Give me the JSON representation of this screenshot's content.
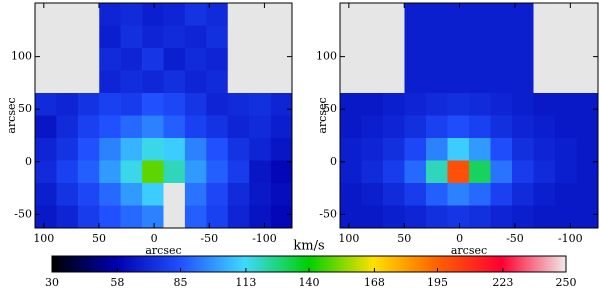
{
  "chart_data": [
    {
      "type": "heatmap",
      "xlabel": "arcsec",
      "ylabel": "arcsec",
      "xlim": [
        108,
        -125
      ],
      "ylim": [
        -63,
        151
      ],
      "xticks": [
        100,
        50,
        0,
        -50,
        -100
      ],
      "yticks": [
        -50,
        0,
        50,
        100
      ],
      "z": [
        [
          null,
          null,
          null,
          70,
          72,
          68,
          70,
          75,
          72,
          null,
          null,
          null
        ],
        [
          null,
          null,
          null,
          68,
          74,
          70,
          72,
          70,
          74,
          null,
          null,
          null
        ],
        [
          null,
          null,
          null,
          72,
          70,
          76,
          68,
          72,
          70,
          null,
          null,
          null
        ],
        [
          null,
          null,
          null,
          70,
          73,
          71,
          74,
          70,
          72,
          null,
          null,
          null
        ],
        [
          72,
          70,
          75,
          80,
          78,
          85,
          82,
          76,
          70,
          72,
          74,
          70
        ],
        [
          65,
          72,
          80,
          85,
          90,
          95,
          88,
          80,
          75,
          70,
          72,
          68
        ],
        [
          70,
          75,
          85,
          95,
          105,
          115,
          110,
          95,
          85,
          75,
          70,
          65
        ],
        [
          72,
          80,
          88,
          100,
          115,
          150,
          120,
          100,
          88,
          78,
          65,
          60
        ],
        [
          68,
          75,
          82,
          90,
          100,
          110,
          null,
          92,
          82,
          72,
          66,
          62
        ],
        [
          66,
          70,
          78,
          85,
          90,
          95,
          null,
          88,
          80,
          70,
          64,
          60
        ]
      ]
    },
    {
      "type": "heatmap",
      "xlabel": "arcsec",
      "ylabel": "arcsec",
      "xlim": [
        108,
        -125
      ],
      "ylim": [
        -63,
        151
      ],
      "xticks": [
        100,
        50,
        0,
        -50,
        -100
      ],
      "yticks": [
        -50,
        0,
        50,
        100
      ],
      "z": [
        [
          null,
          null,
          null,
          68,
          68,
          68,
          68,
          68,
          68,
          null,
          null,
          null
        ],
        [
          null,
          null,
          null,
          68,
          68,
          68,
          68,
          68,
          68,
          null,
          null,
          null
        ],
        [
          null,
          null,
          null,
          68,
          68,
          68,
          68,
          68,
          68,
          null,
          null,
          null
        ],
        [
          null,
          null,
          null,
          68,
          68,
          68,
          68,
          68,
          68,
          null,
          null,
          null
        ],
        [
          66,
          66,
          68,
          70,
          72,
          74,
          72,
          70,
          68,
          66,
          66,
          66
        ],
        [
          66,
          68,
          70,
          74,
          80,
          84,
          80,
          74,
          70,
          68,
          66,
          66
        ],
        [
          68,
          70,
          74,
          82,
          95,
          110,
          100,
          84,
          74,
          70,
          68,
          66
        ],
        [
          68,
          72,
          78,
          90,
          120,
          200,
          130,
          92,
          78,
          72,
          68,
          66
        ],
        [
          66,
          68,
          72,
          78,
          88,
          95,
          90,
          80,
          72,
          68,
          66,
          66
        ],
        [
          66,
          66,
          68,
          70,
          74,
          76,
          74,
          70,
          68,
          66,
          66,
          66
        ]
      ]
    }
  ],
  "colorbar": {
    "label": "km/s",
    "lim": [
      30,
      250
    ],
    "ticks": [
      30,
      58,
      85,
      113,
      140,
      168,
      195,
      223,
      250
    ],
    "colors": [
      "#000000",
      "#0000b0",
      "#2050ff",
      "#40d8ff",
      "#00d000",
      "#ffe000",
      "#ff6000",
      "#ff0030",
      "#f0eaea"
    ],
    "missing_color": "#e6e6e6"
  }
}
